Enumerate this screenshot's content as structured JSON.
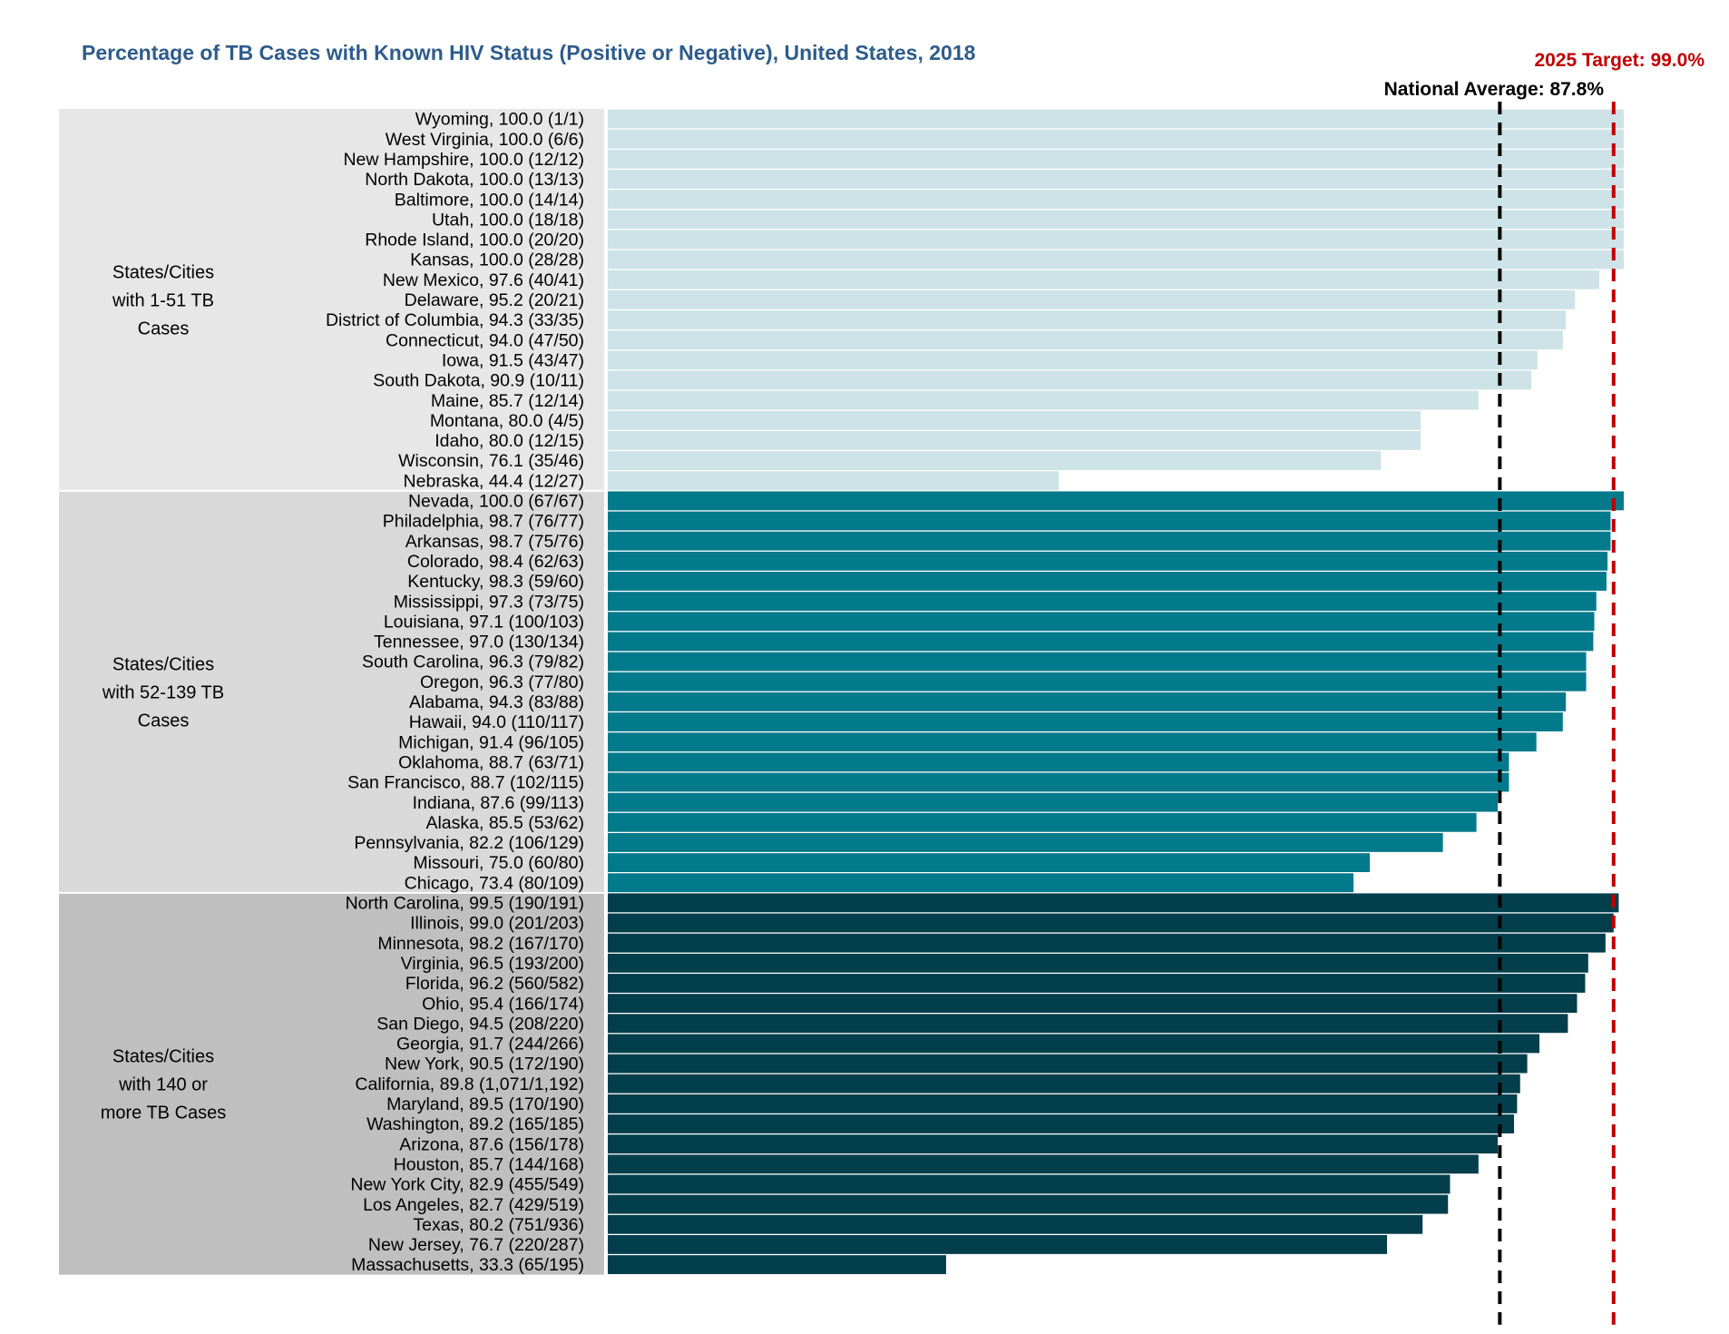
{
  "chart_data": {
    "type": "bar",
    "orientation": "horizontal",
    "title": "Percentage of TB Cases with Known HIV Status (Positive or Negative), United States, 2018",
    "xlim": [
      0,
      100
    ],
    "grid": false,
    "reference_lines": [
      {
        "name": "national_average",
        "label": "National Average: 87.8%",
        "value": 87.8,
        "color": "#000000"
      },
      {
        "name": "target",
        "label": "2025 Target: 99.0%",
        "value": 99.0,
        "color": "#C00000"
      }
    ],
    "groups": [
      {
        "label_lines": [
          "States/Cities",
          "with 1-51 TB",
          "Cases"
        ],
        "background": "#E7E7E7",
        "bar_color": "#CDE3E8",
        "rows": [
          {
            "label": "Wyoming, 100.0 (1/1)",
            "value": 100.0
          },
          {
            "label": "West Virginia, 100.0 (6/6)",
            "value": 100.0
          },
          {
            "label": "New Hampshire, 100.0 (12/12)",
            "value": 100.0
          },
          {
            "label": "North Dakota, 100.0 (13/13)",
            "value": 100.0
          },
          {
            "label": "Baltimore, 100.0 (14/14)",
            "value": 100.0
          },
          {
            "label": "Utah, 100.0 (18/18)",
            "value": 100.0
          },
          {
            "label": "Rhode Island, 100.0 (20/20)",
            "value": 100.0
          },
          {
            "label": "Kansas, 100.0 (28/28)",
            "value": 100.0
          },
          {
            "label": "New Mexico, 97.6 (40/41)",
            "value": 97.6
          },
          {
            "label": "Delaware, 95.2 (20/21)",
            "value": 95.2
          },
          {
            "label": "District of Columbia, 94.3 (33/35)",
            "value": 94.3
          },
          {
            "label": "Connecticut, 94.0 (47/50)",
            "value": 94.0
          },
          {
            "label": "Iowa, 91.5 (43/47)",
            "value": 91.5
          },
          {
            "label": "South Dakota, 90.9 (10/11)",
            "value": 90.9
          },
          {
            "label": "Maine, 85.7 (12/14)",
            "value": 85.7
          },
          {
            "label": "Montana, 80.0 (4/5)",
            "value": 80.0
          },
          {
            "label": "Idaho, 80.0 (12/15)",
            "value": 80.0
          },
          {
            "label": "Wisconsin, 76.1 (35/46)",
            "value": 76.1
          },
          {
            "label": "Nebraska, 44.4 (12/27)",
            "value": 44.4
          }
        ]
      },
      {
        "label_lines": [
          "States/Cities",
          "with 52-139 TB",
          "Cases"
        ],
        "background": "#D9D9D9",
        "bar_color": "#037A8B",
        "rows": [
          {
            "label": "Nevada, 100.0 (67/67)",
            "value": 100.0
          },
          {
            "label": "Philadelphia, 98.7 (76/77)",
            "value": 98.7
          },
          {
            "label": "Arkansas, 98.7 (75/76)",
            "value": 98.7
          },
          {
            "label": "Colorado, 98.4 (62/63)",
            "value": 98.4
          },
          {
            "label": "Kentucky, 98.3 (59/60)",
            "value": 98.3
          },
          {
            "label": "Mississippi, 97.3 (73/75)",
            "value": 97.3
          },
          {
            "label": "Louisiana, 97.1 (100/103)",
            "value": 97.1
          },
          {
            "label": "Tennessee, 97.0 (130/134)",
            "value": 97.0
          },
          {
            "label": "South Carolina, 96.3 (79/82)",
            "value": 96.3
          },
          {
            "label": "Oregon, 96.3 (77/80)",
            "value": 96.3
          },
          {
            "label": "Alabama, 94.3 (83/88)",
            "value": 94.3
          },
          {
            "label": "Hawaii, 94.0 (110/117)",
            "value": 94.0
          },
          {
            "label": "Michigan, 91.4 (96/105)",
            "value": 91.4
          },
          {
            "label": "Oklahoma, 88.7 (63/71)",
            "value": 88.7
          },
          {
            "label": "San Francisco, 88.7 (102/115)",
            "value": 88.7
          },
          {
            "label": "Indiana, 87.6 (99/113)",
            "value": 87.6
          },
          {
            "label": "Alaska, 85.5 (53/62)",
            "value": 85.5
          },
          {
            "label": "Pennsylvania, 82.2 (106/129)",
            "value": 82.2
          },
          {
            "label": "Missouri, 75.0 (60/80)",
            "value": 75.0
          },
          {
            "label": "Chicago, 73.4 (80/109)",
            "value": 73.4
          }
        ]
      },
      {
        "label_lines": [
          "States/Cities",
          "with 140 or",
          "more TB Cases"
        ],
        "background": "#BFBFBF",
        "bar_color": "#033E4C",
        "rows": [
          {
            "label": "North Carolina, 99.5 (190/191)",
            "value": 99.5
          },
          {
            "label": "Illinois, 99.0 (201/203)",
            "value": 99.0
          },
          {
            "label": "Minnesota, 98.2 (167/170)",
            "value": 98.2
          },
          {
            "label": "Virginia, 96.5 (193/200)",
            "value": 96.5
          },
          {
            "label": "Florida, 96.2 (560/582)",
            "value": 96.2
          },
          {
            "label": "Ohio, 95.4 (166/174)",
            "value": 95.4
          },
          {
            "label": "San Diego, 94.5 (208/220)",
            "value": 94.5
          },
          {
            "label": "Georgia, 91.7 (244/266)",
            "value": 91.7
          },
          {
            "label": "New York, 90.5 (172/190)",
            "value": 90.5
          },
          {
            "label": "California, 89.8 (1,071/1,192)",
            "value": 89.8
          },
          {
            "label": "Maryland, 89.5 (170/190)",
            "value": 89.5
          },
          {
            "label": "Washington, 89.2 (165/185)",
            "value": 89.2
          },
          {
            "label": "Arizona, 87.6 (156/178)",
            "value": 87.6
          },
          {
            "label": "Houston, 85.7 (144/168)",
            "value": 85.7
          },
          {
            "label": "New York City, 82.9 (455/549)",
            "value": 82.9
          },
          {
            "label": "Los Angeles, 82.7 (429/519)",
            "value": 82.7
          },
          {
            "label": "Texas, 80.2 (751/936)",
            "value": 80.2
          },
          {
            "label": "New Jersey, 76.7 (220/287)",
            "value": 76.7
          },
          {
            "label": "Massachusetts, 33.3 (65/195)",
            "value": 33.3
          }
        ]
      }
    ]
  }
}
